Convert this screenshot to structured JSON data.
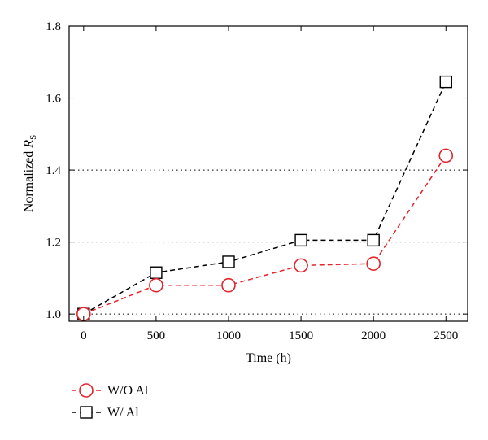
{
  "chart_data": {
    "type": "line",
    "xlabel": "Time (h)",
    "ylabel_prefix": "Normalized ",
    "ylabel_symbol": "R",
    "ylabel_subscript": "S",
    "x": [
      0,
      500,
      1000,
      1500,
      2000,
      2500
    ],
    "x_ticks": [
      "0",
      "500",
      "1000",
      "1500",
      "2000",
      "2500"
    ],
    "xlim": [
      -100,
      2650
    ],
    "y_ticks": [
      "1.0",
      "1.2",
      "1.4",
      "1.6",
      "1.8"
    ],
    "ylim": [
      0.98,
      1.8
    ],
    "grid": "horizontal dotted at 1.0, 1.2, 1.4, 1.6",
    "legend_position": "below-left",
    "series": [
      {
        "name": "W/O Al",
        "marker": "circle",
        "line_style": "dashed",
        "color": "#e3242b",
        "values": [
          1.0,
          1.08,
          1.08,
          1.135,
          1.14,
          1.44
        ]
      },
      {
        "name": "W/ Al",
        "marker": "square",
        "line_style": "dashed",
        "color": "#000000",
        "values": [
          1.0,
          1.115,
          1.145,
          1.205,
          1.205,
          1.645
        ]
      }
    ]
  }
}
